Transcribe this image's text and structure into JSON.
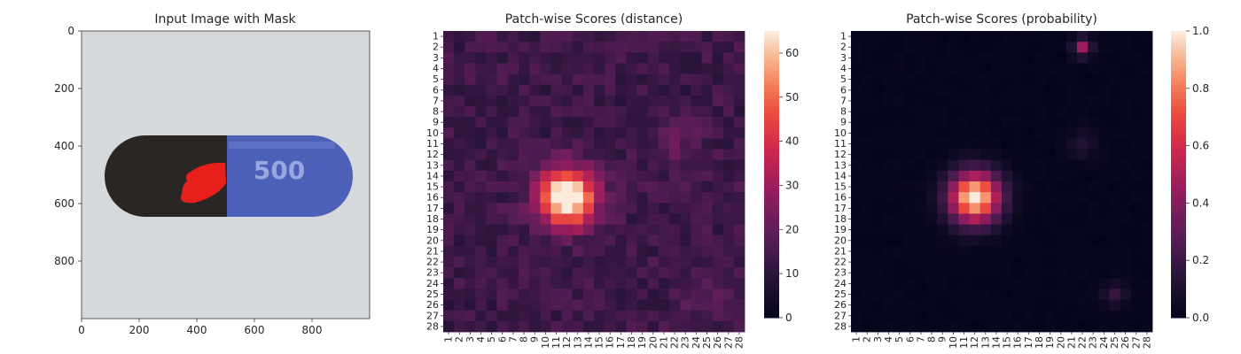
{
  "figure": {
    "panels": [
      {
        "title": "Input Image with Mask",
        "xticks": [
          "0",
          "200",
          "400",
          "600",
          "800"
        ],
        "yticks": [
          "0",
          "200",
          "400",
          "600",
          "800"
        ],
        "xlim": [
          0,
          1000
        ],
        "ylim": [
          1000,
          0
        ],
        "capsule_text": "500",
        "colors": {
          "background": "#d6d9dc",
          "cap_dark": "#2a2624",
          "body_blue": "#4d61b8",
          "mask": "#e8201c"
        }
      },
      {
        "title": "Patch-wise Scores (distance)",
        "colorbar": {
          "ticks": [
            "0",
            "10",
            "20",
            "30",
            "40",
            "50",
            "60"
          ],
          "range": [
            0,
            65
          ]
        }
      },
      {
        "title": "Patch-wise Scores (probability)",
        "colorbar": {
          "ticks": [
            "0.0",
            "0.2",
            "0.4",
            "0.6",
            "0.8",
            "1.0"
          ],
          "range": [
            0,
            1
          ]
        }
      }
    ],
    "heatmap_tick_labels": [
      "1",
      "2",
      "3",
      "4",
      "5",
      "6",
      "7",
      "8",
      "9",
      "10",
      "11",
      "12",
      "13",
      "14",
      "15",
      "16",
      "17",
      "18",
      "19",
      "20",
      "21",
      "22",
      "23",
      "24",
      "25",
      "26",
      "27",
      "28"
    ],
    "colormap": "rocket"
  },
  "chart_data": [
    {
      "type": "image",
      "title": "Input Image with Mask",
      "xlim": [
        0,
        1000
      ],
      "ylim": [
        1000,
        0
      ],
      "xticks": [
        0,
        200,
        400,
        600,
        800
      ],
      "yticks": [
        0,
        200,
        400,
        600,
        800
      ]
    },
    {
      "type": "heatmap",
      "title": "Patch-wise Scores (distance)",
      "rows": 28,
      "cols": 28,
      "colormap": "rocket",
      "vmin": 0,
      "vmax": 65,
      "background": 14,
      "hotspots": [
        {
          "row": 16,
          "col": 12,
          "peak": 64,
          "sigma": 1.8
        },
        {
          "row": 11,
          "col": 22,
          "peak": 6,
          "sigma": 1.6
        },
        {
          "row": 25,
          "col": 25,
          "peak": 5,
          "sigma": 1.6
        }
      ]
    },
    {
      "type": "heatmap",
      "title": "Patch-wise Scores (probability)",
      "rows": 28,
      "cols": 28,
      "colormap": "rocket",
      "vmin": 0,
      "vmax": 1,
      "background": 0.01,
      "hotspots": [
        {
          "row": 16,
          "col": 12,
          "peak": 1.0,
          "sigma": 1.7
        },
        {
          "row": 2,
          "col": 22,
          "peak": 0.45,
          "sigma": 0.6
        },
        {
          "row": 11,
          "col": 22,
          "peak": 0.12,
          "sigma": 1.0
        },
        {
          "row": 25,
          "col": 25,
          "peak": 0.18,
          "sigma": 0.8
        }
      ]
    }
  ]
}
